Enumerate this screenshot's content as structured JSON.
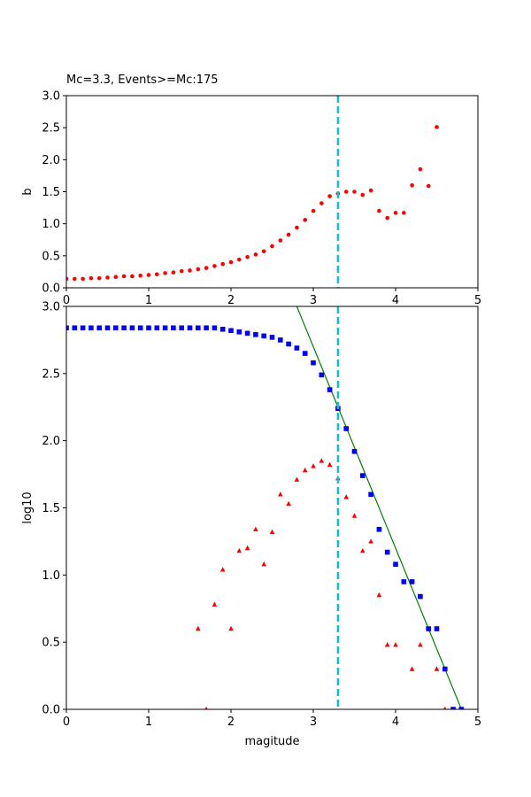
{
  "chart_data": [
    {
      "type": "scatter",
      "title": "Mc=3.3, Events>=Mc:175",
      "xlabel": "",
      "ylabel": "b",
      "xlim": [
        0,
        5
      ],
      "ylim": [
        0,
        3
      ],
      "xticks": [
        "0",
        "1",
        "2",
        "3",
        "4",
        "5"
      ],
      "yticks": [
        "0.0",
        "0.5",
        "1.0",
        "1.5",
        "2.0",
        "2.5",
        "3.0"
      ],
      "grid": false,
      "vline": {
        "x": 3.3,
        "color": "#17becf",
        "style": "dashed"
      },
      "series": [
        {
          "color": "#ff0000",
          "marker": "circle",
          "x": [
            0.0,
            0.1,
            0.2,
            0.3,
            0.4,
            0.5,
            0.6,
            0.7,
            0.8,
            0.9,
            1.0,
            1.1,
            1.2,
            1.3,
            1.4,
            1.5,
            1.6,
            1.7,
            1.8,
            1.9,
            2.0,
            2.1,
            2.2,
            2.3,
            2.4,
            2.5,
            2.6,
            2.7,
            2.8,
            2.9,
            3.0,
            3.1,
            3.2,
            3.3,
            3.4,
            3.5,
            3.6,
            3.7,
            3.8,
            3.9,
            4.0,
            4.1,
            4.2,
            4.3,
            4.4,
            4.5
          ],
          "y": [
            0.14,
            0.14,
            0.14,
            0.15,
            0.15,
            0.16,
            0.17,
            0.18,
            0.18,
            0.19,
            0.2,
            0.21,
            0.23,
            0.24,
            0.26,
            0.27,
            0.29,
            0.31,
            0.34,
            0.37,
            0.4,
            0.44,
            0.48,
            0.52,
            0.57,
            0.65,
            0.74,
            0.83,
            0.94,
            1.06,
            1.2,
            1.32,
            1.43,
            1.47,
            1.5,
            1.5,
            1.45,
            1.52,
            1.2,
            1.09,
            1.17,
            1.17,
            1.6,
            1.85,
            1.59,
            2.51
          ]
        }
      ]
    },
    {
      "type": "scatter",
      "title": "",
      "xlabel": "magitude",
      "ylabel": "log10",
      "xlim": [
        0,
        5
      ],
      "ylim": [
        0,
        3
      ],
      "xticks": [
        "0",
        "1",
        "2",
        "3",
        "4",
        "5"
      ],
      "yticks": [
        "0.0",
        "0.5",
        "1.0",
        "1.5",
        "2.0",
        "2.5",
        "3.0"
      ],
      "grid": false,
      "vline": {
        "x": 3.3,
        "color": "#17becf",
        "style": "dashed"
      },
      "fit_line": {
        "color": "#008000",
        "x": [
          2.8,
          4.8
        ],
        "y": [
          3.0,
          0.0
        ]
      },
      "series": [
        {
          "color": "#0000ff",
          "marker": "square",
          "x": [
            0.0,
            0.1,
            0.2,
            0.3,
            0.4,
            0.5,
            0.6,
            0.7,
            0.8,
            0.9,
            1.0,
            1.1,
            1.2,
            1.3,
            1.4,
            1.5,
            1.6,
            1.7,
            1.8,
            1.9,
            2.0,
            2.1,
            2.2,
            2.3,
            2.4,
            2.5,
            2.6,
            2.7,
            2.8,
            2.9,
            3.0,
            3.1,
            3.2,
            3.3,
            3.4,
            3.5,
            3.6,
            3.7,
            3.8,
            3.9,
            4.0,
            4.1,
            4.2,
            4.3,
            4.4,
            4.5,
            4.6,
            4.7,
            4.8
          ],
          "y": [
            2.84,
            2.84,
            2.84,
            2.84,
            2.84,
            2.84,
            2.84,
            2.84,
            2.84,
            2.84,
            2.84,
            2.84,
            2.84,
            2.84,
            2.84,
            2.84,
            2.84,
            2.84,
            2.84,
            2.83,
            2.82,
            2.81,
            2.8,
            2.79,
            2.78,
            2.77,
            2.75,
            2.72,
            2.69,
            2.65,
            2.58,
            2.49,
            2.38,
            2.24,
            2.09,
            1.92,
            1.74,
            1.6,
            1.34,
            1.17,
            1.08,
            0.95,
            0.95,
            0.84,
            0.6,
            0.6,
            0.3,
            0.0,
            0.0
          ]
        },
        {
          "color": "#ff0000",
          "marker": "triangle",
          "x": [
            1.6,
            1.7,
            1.8,
            1.9,
            2.0,
            2.1,
            2.2,
            2.3,
            2.4,
            2.5,
            2.6,
            2.7,
            2.8,
            2.9,
            3.0,
            3.1,
            3.2,
            3.3,
            3.4,
            3.5,
            3.6,
            3.7,
            3.8,
            3.9,
            4.0,
            4.2,
            4.3,
            4.5,
            4.6
          ],
          "y": [
            0.6,
            0.0,
            0.78,
            1.04,
            0.6,
            1.18,
            1.2,
            1.34,
            1.08,
            1.32,
            1.6,
            1.53,
            1.71,
            1.78,
            1.81,
            1.85,
            1.82,
            1.72,
            1.58,
            1.44,
            1.18,
            1.25,
            0.85,
            0.48,
            0.48,
            0.3,
            0.48,
            0.3,
            0.0
          ]
        }
      ]
    }
  ]
}
